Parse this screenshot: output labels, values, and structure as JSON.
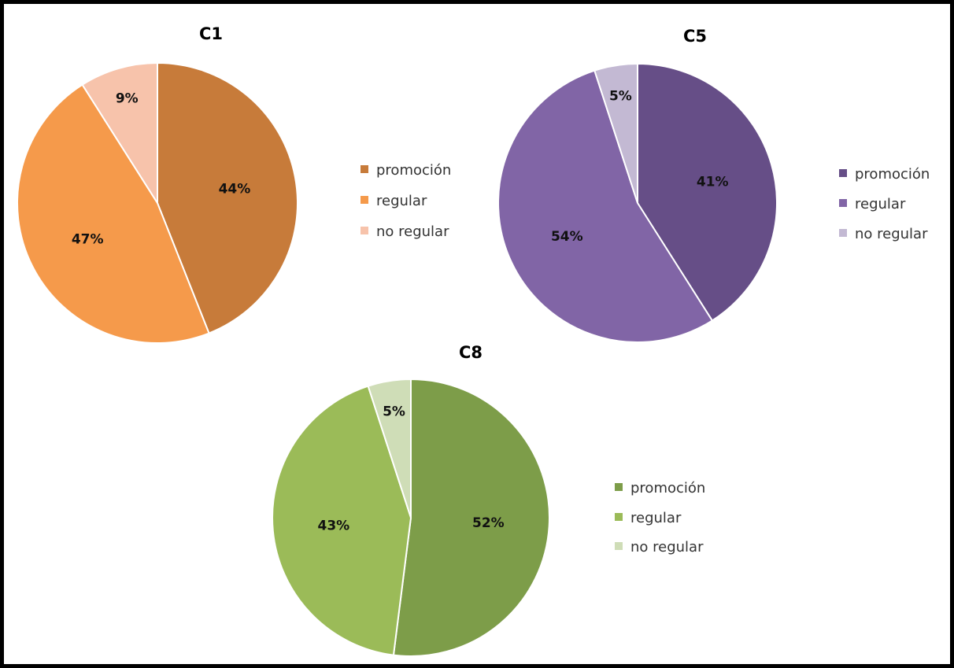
{
  "chart_data": [
    {
      "type": "pie",
      "title": "C1",
      "slices": [
        {
          "label": "promoción",
          "value": 44,
          "display": "44%",
          "color": "#C77B3A"
        },
        {
          "label": "regular",
          "value": 47,
          "display": "47%",
          "color": "#F59A4B"
        },
        {
          "label": "no regular",
          "value": 9,
          "display": "9%",
          "color": "#F7C3AB"
        }
      ],
      "legend_position": "right"
    },
    {
      "type": "pie",
      "title": "C5",
      "slices": [
        {
          "label": "promoción",
          "value": 41,
          "display": "41%",
          "color": "#664E87"
        },
        {
          "label": "regular",
          "value": 54,
          "display": "54%",
          "color": "#8165A6"
        },
        {
          "label": "no regular",
          "value": 5,
          "display": "5%",
          "color": "#C3B9D3"
        }
      ],
      "legend_position": "right"
    },
    {
      "type": "pie",
      "title": "C8",
      "slices": [
        {
          "label": "promoción",
          "value": 52,
          "display": "52%",
          "color": "#7D9D49"
        },
        {
          "label": "regular",
          "value": 43,
          "display": "43%",
          "color": "#9BBB58"
        },
        {
          "label": "no regular",
          "value": 5,
          "display": "5%",
          "color": "#CFDDB7"
        }
      ],
      "legend_position": "right"
    }
  ]
}
